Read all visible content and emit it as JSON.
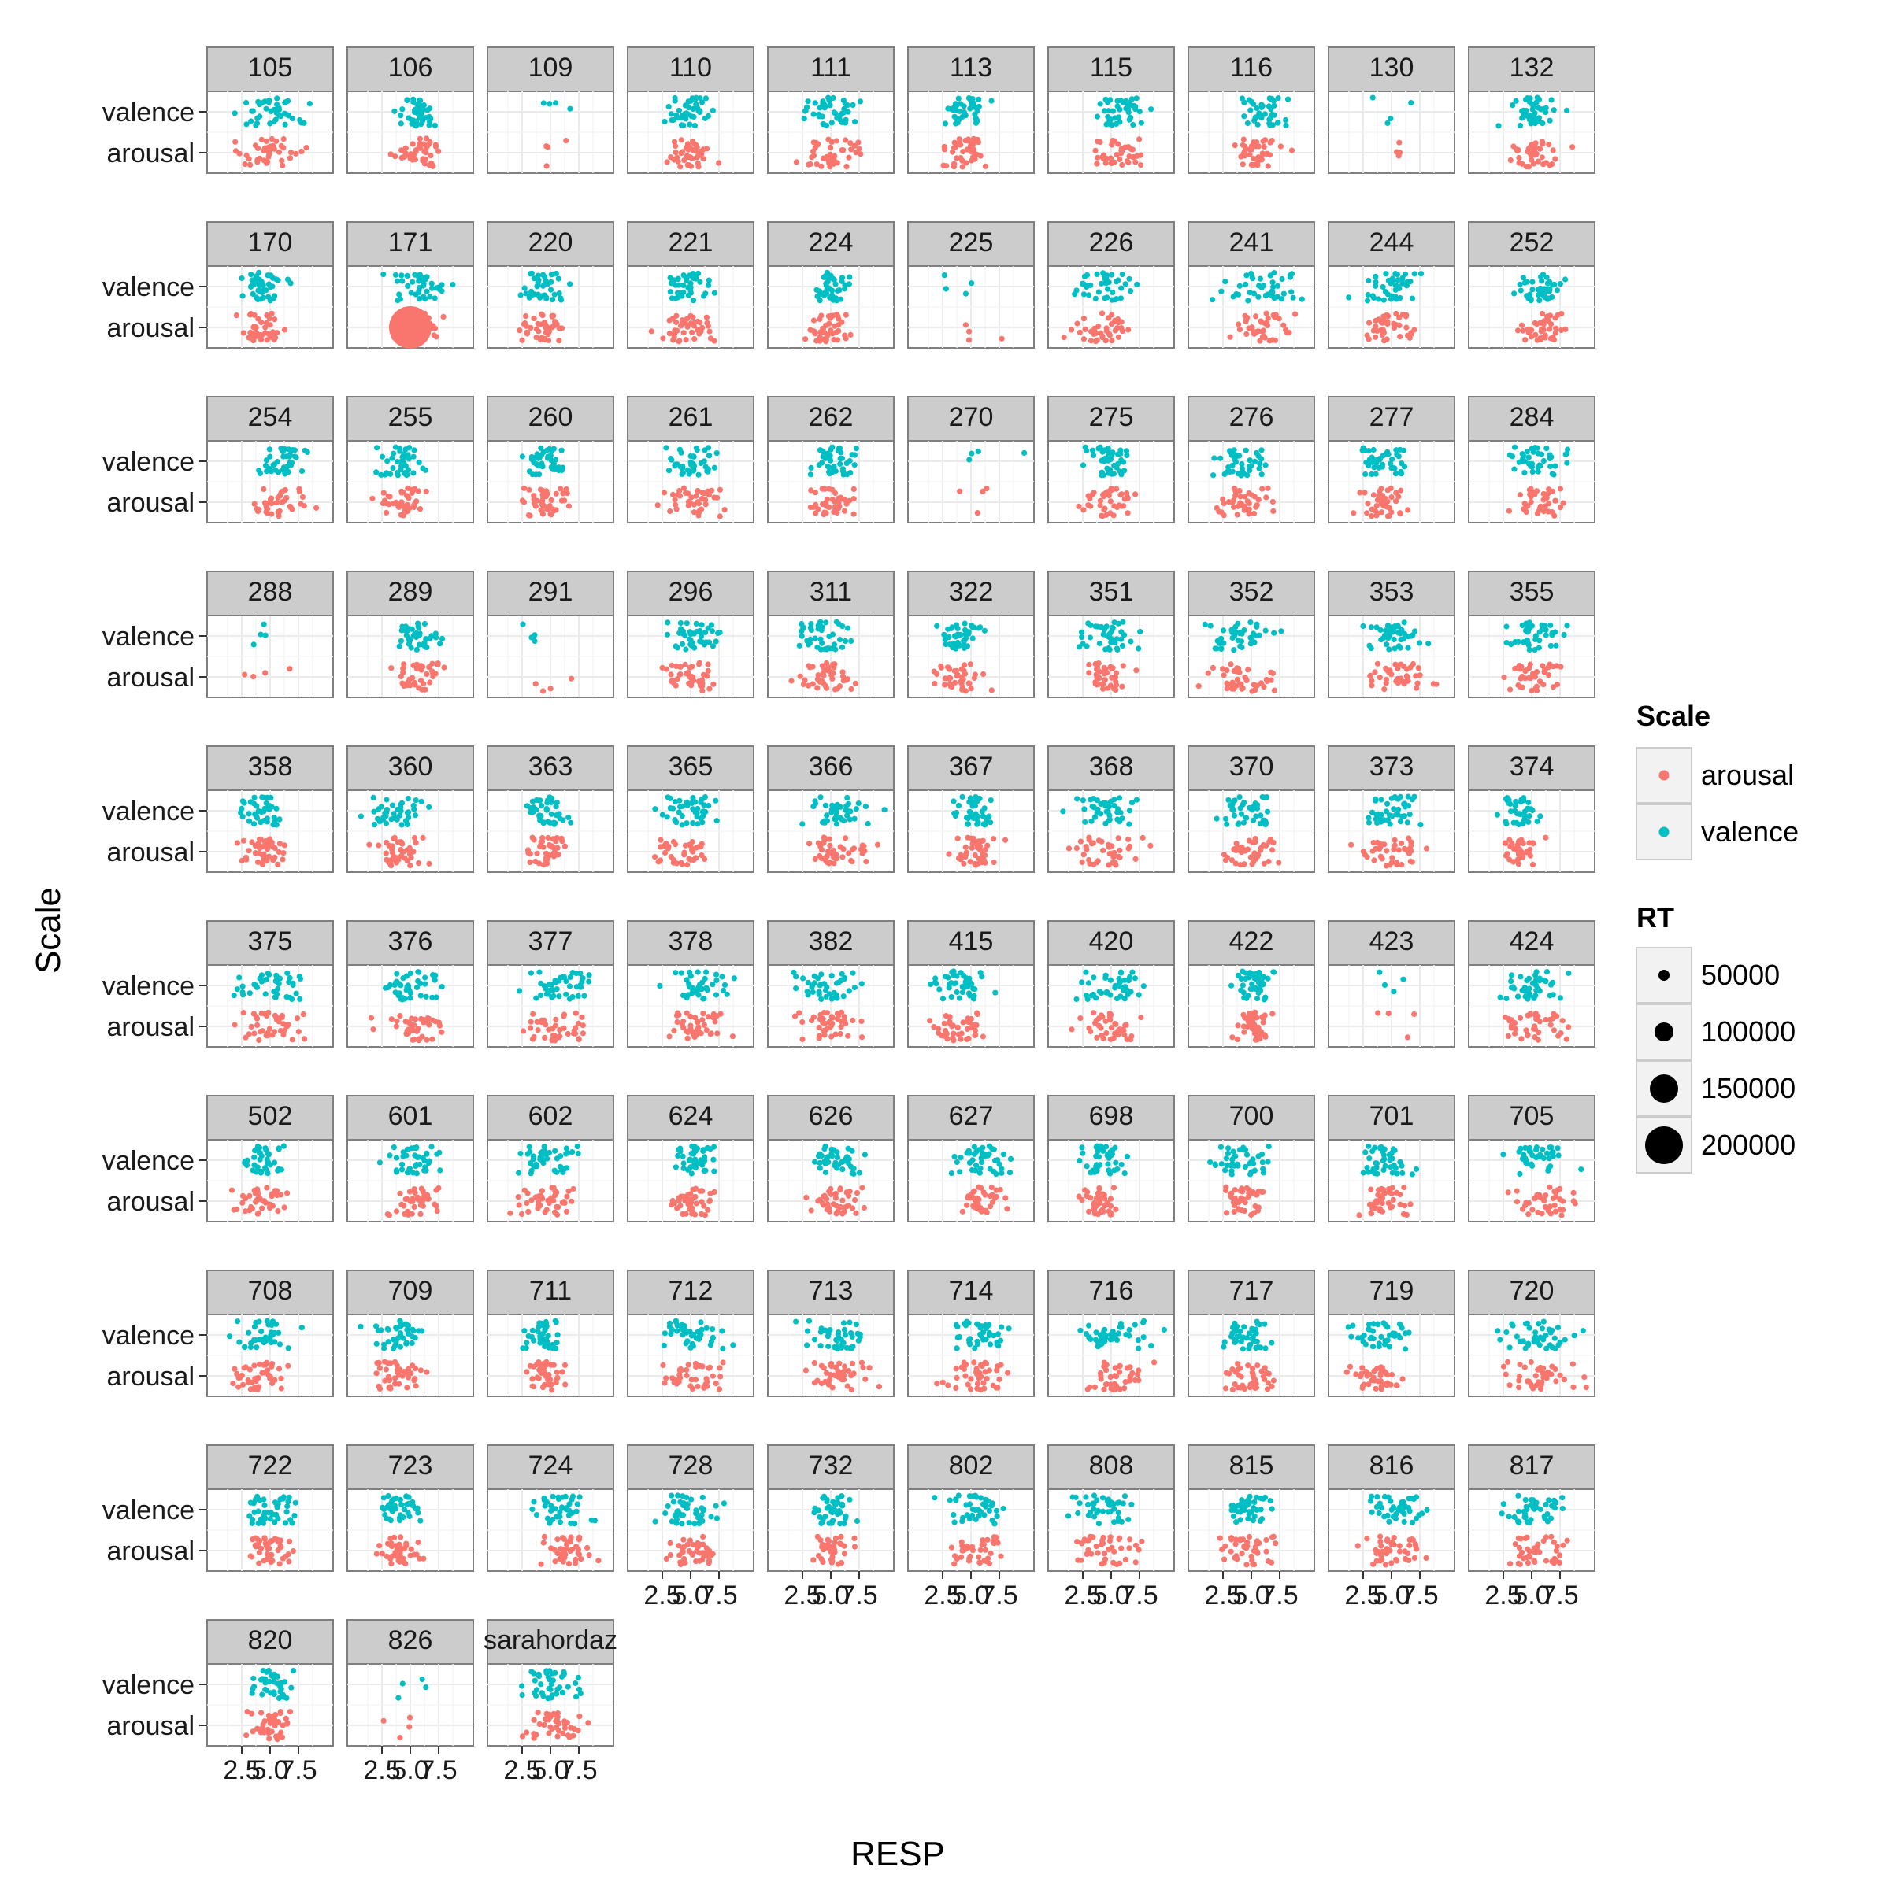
{
  "chart_data": {
    "type": "scatter",
    "facet_by": "subject",
    "xlabel": "RESP",
    "ylabel": "Scale",
    "x_ticks": [
      "2.5",
      "5.0",
      "7.5"
    ],
    "xlim": [
      0,
      10
    ],
    "y_categories": [
      "arousal",
      "valence"
    ],
    "grid": true,
    "panels": [
      "105",
      "106",
      "109",
      "110",
      "111",
      "113",
      "115",
      "116",
      "130",
      "132",
      "170",
      "171",
      "220",
      "221",
      "224",
      "225",
      "226",
      "241",
      "244",
      "252",
      "254",
      "255",
      "260",
      "261",
      "262",
      "270",
      "275",
      "276",
      "277",
      "284",
      "288",
      "289",
      "291",
      "296",
      "311",
      "322",
      "351",
      "352",
      "353",
      "355",
      "358",
      "360",
      "363",
      "365",
      "366",
      "367",
      "368",
      "370",
      "373",
      "374",
      "375",
      "376",
      "377",
      "378",
      "382",
      "415",
      "420",
      "422",
      "423",
      "424",
      "502",
      "601",
      "602",
      "624",
      "626",
      "627",
      "698",
      "700",
      "701",
      "705",
      "708",
      "709",
      "711",
      "712",
      "713",
      "714",
      "716",
      "717",
      "719",
      "720",
      "722",
      "723",
      "724",
      "728",
      "732",
      "802",
      "808",
      "815",
      "816",
      "817",
      "820",
      "826",
      "sarahordaz"
    ],
    "sparse_panels": [
      "109",
      "130",
      "225",
      "270",
      "288",
      "291",
      "423",
      "826"
    ],
    "series": [
      {
        "name": "arousal",
        "color": "#F8766D"
      },
      {
        "name": "valence",
        "color": "#00BFC4"
      }
    ],
    "legend": {
      "placement": "right",
      "color_title": "Scale",
      "color_items": [
        "arousal",
        "valence"
      ],
      "size_title": "RT",
      "size_items": [
        "50000",
        "100000",
        "150000",
        "200000"
      ]
    },
    "note_171": "panel 171 contains one arousal point with very large RT near x=5"
  }
}
